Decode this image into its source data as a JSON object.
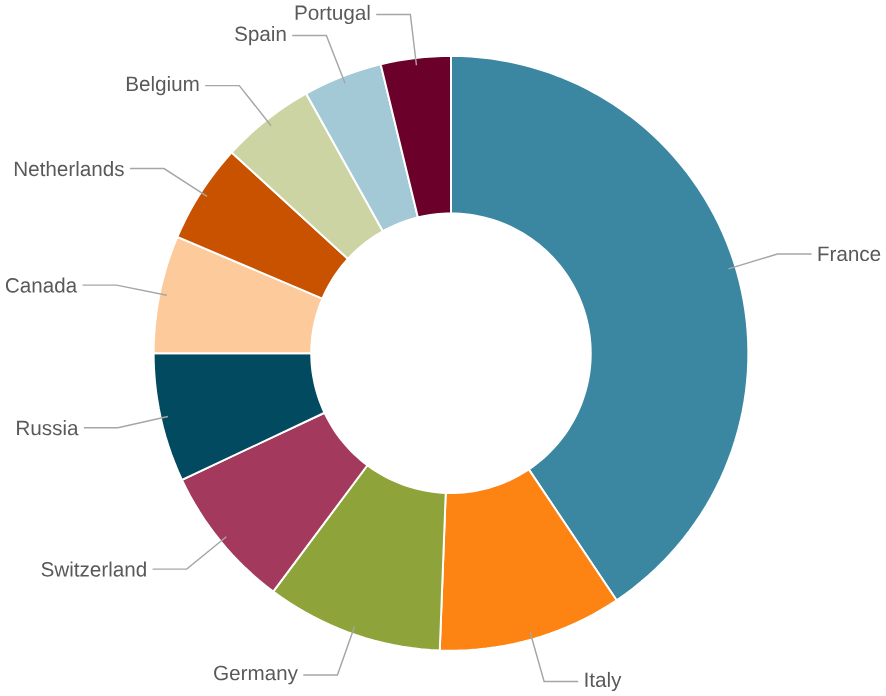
{
  "chart_data": {
    "type": "donut",
    "categories": [
      "France",
      "Italy",
      "Germany",
      "Switzerland",
      "Russia",
      "Canada",
      "Netherlands",
      "Belgium",
      "Spain",
      "Portugal"
    ],
    "values": [
      40.6,
      10,
      9.6,
      7.8,
      7,
      6.4,
      5.4,
      5.1,
      4.3,
      3.8
    ],
    "colors": [
      "#3b87a1",
      "#fd8412",
      "#8ea43b",
      "#a33a5e",
      "#024a5f",
      "#fdca9c",
      "#c85200",
      "#ccd4a3",
      "#a3c8d6",
      "#6b002b"
    ]
  }
}
